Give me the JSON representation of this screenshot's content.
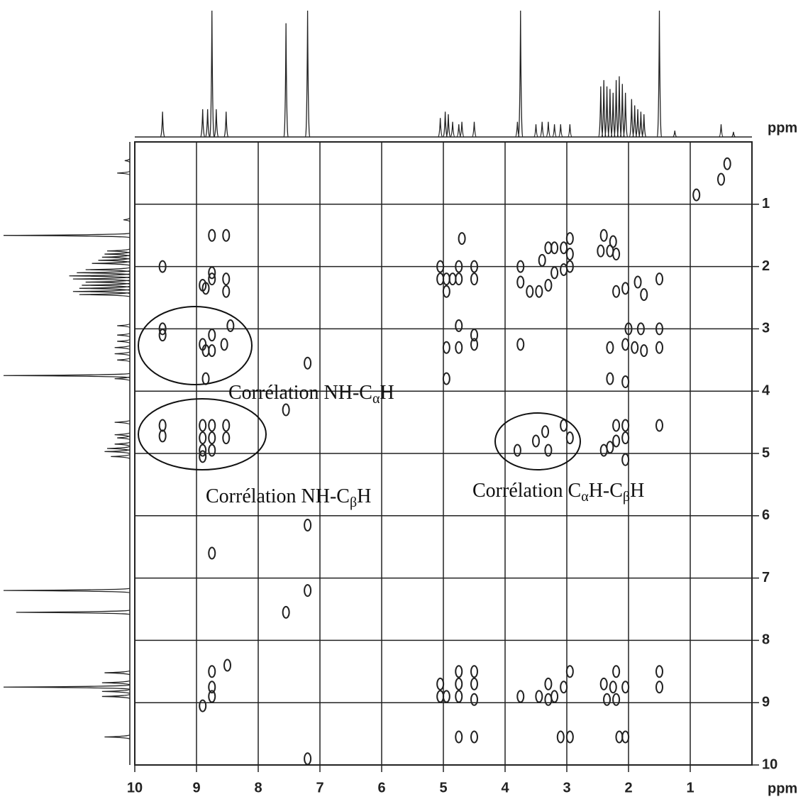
{
  "chart_data": {
    "type": "scatter",
    "xlim": [
      10,
      0
    ],
    "ylim": [
      0,
      10
    ],
    "xticks": [
      10,
      9,
      8,
      7,
      6,
      5,
      4,
      3,
      2,
      1
    ],
    "yticks": [
      1,
      2,
      3,
      4,
      5,
      6,
      7,
      8,
      9,
      10
    ],
    "x_label": "ppm",
    "top_label": "ppm",
    "grid": true,
    "color": "#222222",
    "x": [
      9.55,
      9.55,
      9.55,
      9.55,
      9.55,
      8.75,
      8.52,
      8.75,
      8.75,
      8.9,
      8.85,
      8.52,
      8.52,
      8.9,
      8.85,
      8.75,
      8.75,
      8.55,
      8.45,
      8.85,
      8.9,
      8.9,
      8.9,
      8.9,
      8.75,
      8.75,
      8.75,
      8.52,
      8.52,
      7.2,
      7.55,
      7.2,
      7.2,
      8.75,
      7.55,
      7.2,
      5.05,
      5.05,
      4.95,
      4.95,
      4.85,
      4.75,
      4.75,
      4.5,
      4.5,
      4.75,
      4.75,
      4.5,
      4.5,
      4.95,
      4.95,
      4.7,
      3.75,
      3.75,
      3.4,
      3.3,
      3.2,
      3.05,
      2.95,
      2.95,
      3.2,
      3.3,
      3.45,
      3.6,
      2.95,
      3.05,
      3.75,
      3.8,
      3.5,
      3.35,
      3.05,
      2.95,
      3.3,
      2.4,
      2.25,
      2.45,
      2.3,
      2.2,
      2.05,
      1.85,
      1.75,
      2.2,
      2.0,
      1.8,
      2.05,
      1.9,
      1.75,
      2.3,
      2.3,
      2.05,
      2.2,
      2.05,
      2.2,
      2.05,
      2.4,
      2.3,
      2.05,
      1.5,
      1.5,
      1.5,
      1.5,
      5.05,
      5.05,
      4.95,
      4.75,
      4.75,
      4.75,
      4.5,
      4.5,
      4.5,
      3.75,
      3.45,
      3.3,
      3.2,
      3.3,
      3.05,
      2.95,
      2.4,
      2.2,
      2.25,
      2.05,
      2.35,
      2.2,
      1.5,
      1.5,
      4.75,
      4.5,
      3.1,
      2.95,
      2.05,
      2.15,
      8.75,
      8.75,
      8.5,
      8.75,
      8.9,
      0.4,
      0.5,
      0.9
    ],
    "y": [
      2.0,
      3.0,
      3.1,
      4.55,
      4.72,
      1.5,
      1.5,
      2.1,
      2.2,
      2.3,
      2.35,
      2.2,
      2.4,
      3.25,
      3.35,
      3.1,
      3.35,
      3.25,
      2.95,
      3.8,
      4.55,
      4.75,
      4.95,
      5.05,
      4.55,
      4.75,
      4.95,
      4.55,
      4.75,
      3.55,
      4.3,
      6.15,
      7.2,
      6.6,
      7.55,
      9.9,
      2.0,
      2.2,
      2.2,
      2.4,
      2.2,
      2.0,
      2.2,
      2.0,
      2.2,
      2.95,
      3.3,
      3.1,
      3.25,
      3.3,
      3.8,
      1.55,
      2.0,
      2.25,
      1.9,
      1.7,
      1.7,
      1.7,
      1.55,
      1.8,
      2.1,
      2.3,
      2.4,
      2.4,
      2.0,
      2.05,
      3.25,
      4.95,
      4.8,
      4.65,
      4.55,
      4.75,
      4.95,
      1.5,
      1.6,
      1.75,
      1.75,
      1.8,
      2.35,
      2.25,
      2.45,
      2.4,
      3.0,
      3.0,
      3.25,
      3.3,
      3.35,
      3.3,
      3.8,
      3.85,
      4.55,
      4.55,
      4.8,
      4.75,
      4.95,
      4.9,
      5.1,
      2.2,
      3.0,
      3.3,
      4.55,
      8.7,
      8.9,
      8.9,
      8.5,
      8.7,
      8.9,
      8.5,
      8.7,
      8.95,
      8.9,
      8.9,
      8.7,
      8.9,
      8.95,
      8.75,
      8.5,
      8.7,
      8.5,
      8.75,
      8.75,
      8.95,
      8.95,
      8.5,
      8.75,
      9.55,
      9.55,
      9.55,
      9.55,
      9.55,
      9.55,
      8.5,
      8.75,
      8.4,
      8.9,
      9.05,
      0.35,
      0.6,
      0.85
    ],
    "projection": {
      "x": [
        9.55,
        8.9,
        8.82,
        8.75,
        8.68,
        8.52,
        7.55,
        7.2,
        5.05,
        4.97,
        4.92,
        4.85,
        4.75,
        4.7,
        4.5,
        3.8,
        3.75,
        3.5,
        3.4,
        3.3,
        3.2,
        3.1,
        2.95,
        2.45,
        2.4,
        2.35,
        2.3,
        2.25,
        2.2,
        2.15,
        2.1,
        2.05,
        1.95,
        1.9,
        1.85,
        1.8,
        1.75,
        1.5,
        1.25,
        0.5,
        0.3
      ],
      "height": [
        20,
        22,
        22,
        100,
        22,
        20,
        90,
        100,
        15,
        20,
        18,
        12,
        10,
        12,
        12,
        12,
        100,
        10,
        12,
        12,
        10,
        10,
        10,
        40,
        45,
        40,
        38,
        35,
        45,
        48,
        42,
        35,
        30,
        25,
        22,
        20,
        18,
        100,
        5,
        10,
        4
      ]
    },
    "annotations": [
      {
        "parts": [
          "Corrélation NH-C",
          "α",
          "H"
        ]
      },
      {
        "parts": [
          "Corrélation NH-C",
          "β",
          "H"
        ]
      },
      {
        "parts": [
          "Corrélation C",
          "α",
          "H-C",
          "β",
          "H"
        ]
      }
    ]
  }
}
